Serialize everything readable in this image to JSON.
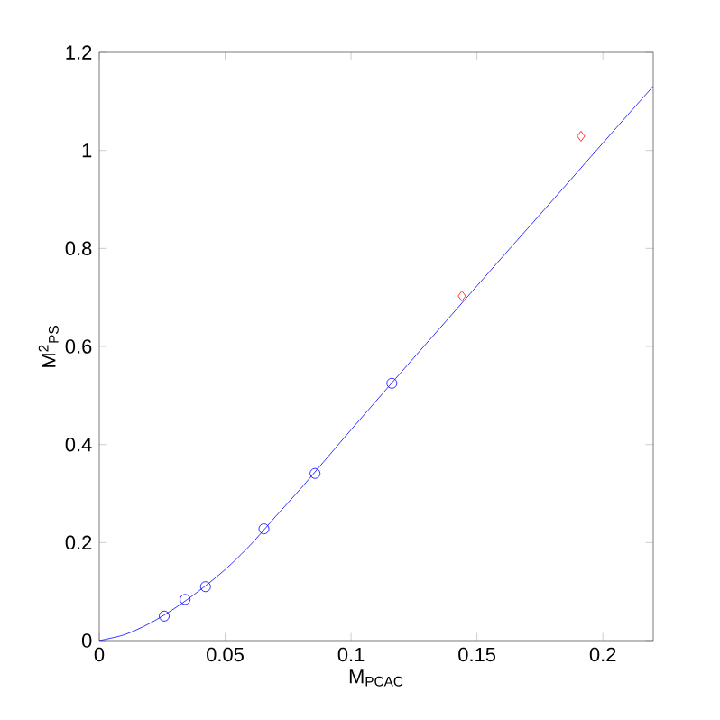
{
  "chart_data": {
    "type": "scatter",
    "xlabel": "M$_{PCAC}$",
    "ylabel": "M$^{2}$$_{PS}$",
    "xlim": [
      0,
      0.22
    ],
    "ylim": [
      0,
      1.2
    ],
    "xticks": [
      0,
      0.05,
      0.1,
      0.15,
      0.2
    ],
    "yticks": [
      0,
      0.2,
      0.4,
      0.6,
      0.8,
      1,
      1.2
    ],
    "grid": false,
    "series": [
      {
        "type": "line",
        "color": "#0000ff",
        "marker": "none",
        "line_style": "solid",
        "x": [
          0,
          0.01,
          0.02,
          0.03,
          0.04,
          0.05,
          0.06,
          0.07,
          0.08,
          0.09,
          0.1,
          0.12,
          0.14,
          0.16,
          0.18,
          0.2,
          0.22
        ],
        "values": [
          0,
          0.012,
          0.035,
          0.066,
          0.103,
          0.145,
          0.195,
          0.253,
          0.31,
          0.37,
          0.43,
          0.548,
          0.665,
          0.782,
          0.898,
          1.015,
          1.131
        ]
      },
      {
        "color": "#0000ff",
        "marker": "circle",
        "x": [
          0.0258,
          0.0341,
          0.0422,
          0.0654,
          0.0857,
          0.1162
        ],
        "values": [
          0.05,
          0.084,
          0.11,
          0.228,
          0.341,
          0.525
        ]
      },
      {
        "color": "#ff0000",
        "marker": "diamond",
        "x": [
          0.144,
          0.1913
        ],
        "values": [
          0.703,
          1.029
        ]
      }
    ]
  }
}
